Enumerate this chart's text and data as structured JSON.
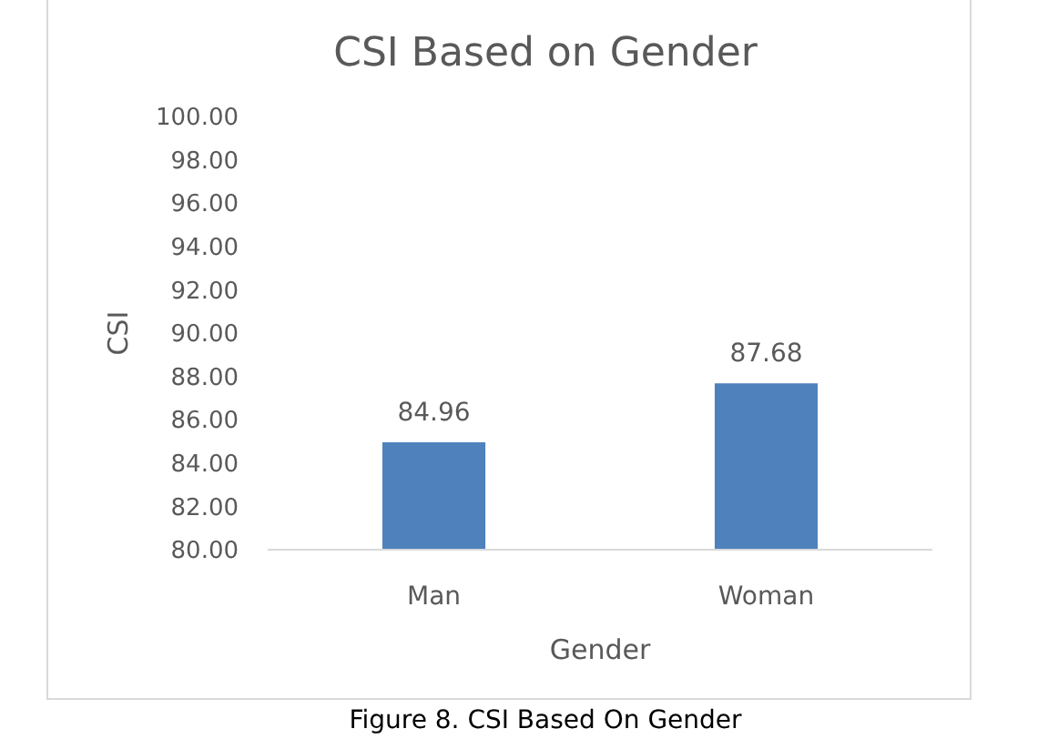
{
  "chart_data": {
    "type": "bar",
    "title": "CSI Based on Gender",
    "xlabel": "Gender",
    "ylabel": "CSI",
    "categories": [
      "Man",
      "Woman"
    ],
    "values": [
      84.96,
      87.68
    ],
    "color": "#4f81bd",
    "ylim": [
      80,
      100
    ],
    "yticks": [
      {
        "value": 80,
        "label": "80.00"
      },
      {
        "value": 82,
        "label": "82.00"
      },
      {
        "value": 84,
        "label": "84.00"
      },
      {
        "value": 86,
        "label": "86.00"
      },
      {
        "value": 88,
        "label": "88.00"
      },
      {
        "value": 90,
        "label": "90.00"
      },
      {
        "value": 92,
        "label": "92.00"
      },
      {
        "value": 94,
        "label": "94.00"
      },
      {
        "value": 96,
        "label": "96.00"
      },
      {
        "value": 98,
        "label": "98.00"
      },
      {
        "value": 100,
        "label": "100.00"
      }
    ],
    "data_labels": true,
    "grid": false,
    "annotations": [
      "Figure 8. CSI Based On Gender"
    ]
  }
}
